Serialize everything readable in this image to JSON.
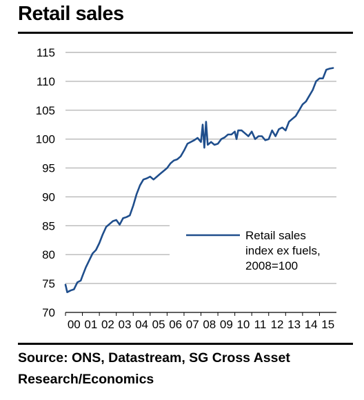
{
  "title": "Retail sales",
  "source": "Source: ONS, Datastream, SG Cross Asset Research/Economics",
  "chart_data": {
    "type": "line",
    "title": "Retail sales",
    "xlabel": "",
    "ylabel": "",
    "ylim": [
      70,
      115
    ],
    "y_ticks": [
      "70",
      "75",
      "80",
      "85",
      "90",
      "95",
      "100",
      "105",
      "110",
      "115"
    ],
    "x_ticks": [
      "00",
      "01",
      "02",
      "03",
      "04",
      "05",
      "06",
      "07",
      "08",
      "09",
      "10",
      "11",
      "12",
      "13",
      "14",
      "15"
    ],
    "grid": "horizontal",
    "legend_position": "center-right",
    "series_color": "#1f4e8c",
    "series": [
      {
        "name": "Retail sales index ex fuels, 2008=100",
        "legend_lines": [
          "Retail sales",
          "index ex fuels,",
          "2008=100"
        ],
        "x": [
          2000.0,
          2000.1,
          2000.3,
          2000.5,
          2000.7,
          2000.9,
          2001.0,
          2001.2,
          2001.4,
          2001.6,
          2001.8,
          2002.0,
          2002.2,
          2002.4,
          2002.6,
          2002.8,
          2003.0,
          2003.2,
          2003.4,
          2003.6,
          2003.8,
          2004.0,
          2004.2,
          2004.4,
          2004.6,
          2004.8,
          2005.0,
          2005.2,
          2005.4,
          2005.6,
          2005.8,
          2006.0,
          2006.2,
          2006.4,
          2006.6,
          2006.8,
          2007.0,
          2007.2,
          2007.4,
          2007.6,
          2007.8,
          2008.0,
          2008.1,
          2008.2,
          2008.3,
          2008.4,
          2008.6,
          2008.8,
          2009.0,
          2009.2,
          2009.4,
          2009.6,
          2009.8,
          2010.0,
          2010.1,
          2010.2,
          2010.4,
          2010.6,
          2010.8,
          2011.0,
          2011.2,
          2011.4,
          2011.6,
          2011.8,
          2012.0,
          2012.2,
          2012.4,
          2012.6,
          2012.8,
          2013.0,
          2013.2,
          2013.4,
          2013.6,
          2013.8,
          2014.0,
          2014.2,
          2014.4,
          2014.6,
          2014.8,
          2015.0,
          2015.2,
          2015.4,
          2015.6,
          2015.8
        ],
        "values": [
          74.8,
          73.5,
          73.8,
          74.0,
          75.2,
          75.5,
          76.3,
          77.8,
          79.0,
          80.2,
          80.8,
          82.0,
          83.5,
          84.8,
          85.3,
          85.8,
          86.0,
          85.2,
          86.3,
          86.5,
          86.8,
          88.5,
          90.5,
          92.0,
          93.0,
          93.2,
          93.5,
          93.0,
          93.5,
          94.0,
          94.5,
          95.0,
          95.8,
          96.3,
          96.5,
          97.0,
          98.0,
          99.2,
          99.5,
          99.8,
          100.2,
          99.5,
          102.5,
          98.5,
          103.0,
          99.0,
          99.5,
          99.0,
          99.2,
          100.0,
          100.3,
          100.8,
          100.8,
          101.3,
          100.0,
          101.5,
          101.5,
          101.0,
          100.5,
          101.3,
          100.0,
          100.5,
          100.5,
          99.8,
          100.0,
          101.5,
          100.5,
          101.7,
          102.0,
          101.5,
          103.0,
          103.5,
          104.0,
          105.0,
          106.0,
          106.5,
          107.5,
          108.5,
          110.0,
          110.5,
          110.5,
          112.0,
          112.2,
          112.3
        ]
      }
    ]
  }
}
